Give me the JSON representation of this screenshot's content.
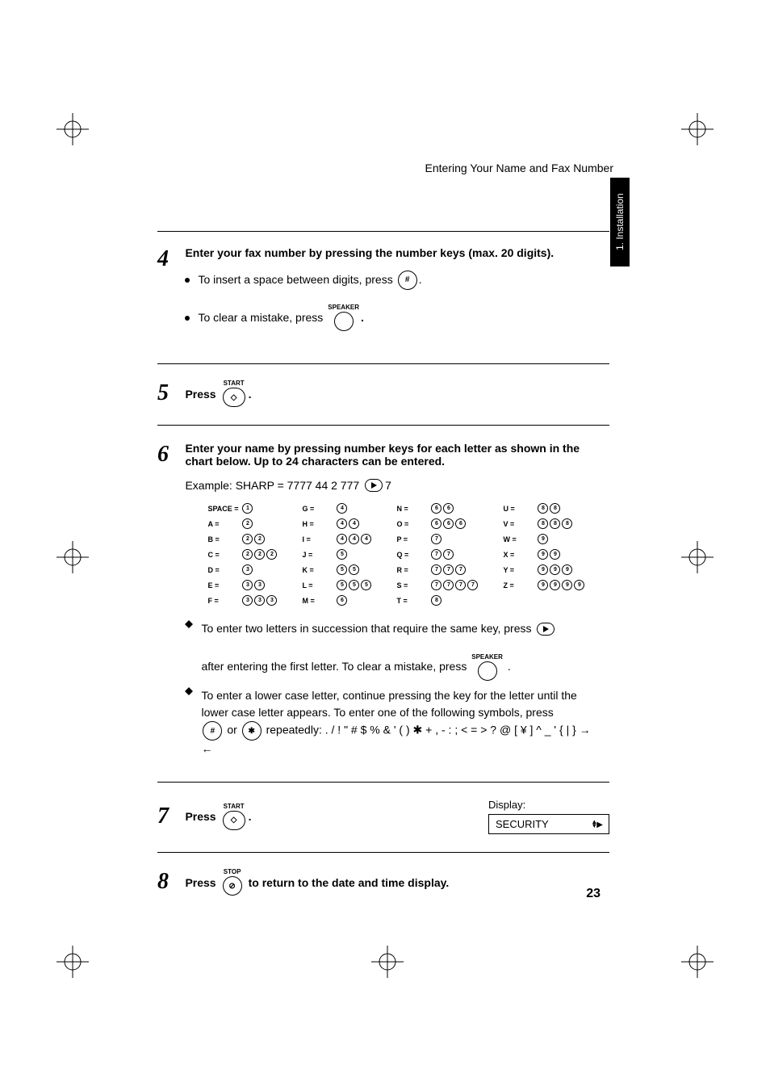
{
  "header": "Entering Your Name and Fax Number",
  "sidetab": "1. Installation",
  "page_number": "23",
  "step4": {
    "num": "4",
    "title": "Enter your fax number by pressing the number keys (max. 20 digits).",
    "bullet1_a": "To insert a space between digits, press",
    "bullet1_key": "#",
    "bullet1_b": ".",
    "bullet2_a": "To clear a mistake, press",
    "bullet2_key_label": "SPEAKER",
    "bullet2_b": "."
  },
  "step5": {
    "num": "5",
    "text_a": "Press",
    "key_label": "START",
    "text_b": "."
  },
  "step6": {
    "num": "6",
    "title": "Enter your name by pressing number keys for each letter as shown in the chart below. Up to 24 characters can be entered.",
    "example_a": "Example: SHARP = 7777  44  2  777",
    "example_b": "7",
    "chart": {
      "col1": [
        {
          "l": "SPACE =",
          "k": [
            "1"
          ]
        },
        {
          "l": "A =",
          "k": [
            "2"
          ]
        },
        {
          "l": "B =",
          "k": [
            "2",
            "2"
          ]
        },
        {
          "l": "C =",
          "k": [
            "2",
            "2",
            "2"
          ]
        },
        {
          "l": "D =",
          "k": [
            "3"
          ]
        },
        {
          "l": "E =",
          "k": [
            "3",
            "3"
          ]
        },
        {
          "l": "F =",
          "k": [
            "3",
            "3",
            "3"
          ]
        }
      ],
      "col2": [
        {
          "l": "G =",
          "k": [
            "4"
          ]
        },
        {
          "l": "H =",
          "k": [
            "4",
            "4"
          ]
        },
        {
          "l": "I =",
          "k": [
            "4",
            "4",
            "4"
          ]
        },
        {
          "l": "J =",
          "k": [
            "5"
          ]
        },
        {
          "l": "K =",
          "k": [
            "5",
            "5"
          ]
        },
        {
          "l": "L =",
          "k": [
            "5",
            "5",
            "5"
          ]
        },
        {
          "l": "M =",
          "k": [
            "6"
          ]
        }
      ],
      "col3": [
        {
          "l": "N =",
          "k": [
            "6",
            "6"
          ]
        },
        {
          "l": "O =",
          "k": [
            "6",
            "6",
            "6"
          ]
        },
        {
          "l": "P =",
          "k": [
            "7"
          ]
        },
        {
          "l": "Q =",
          "k": [
            "7",
            "7"
          ]
        },
        {
          "l": "R =",
          "k": [
            "7",
            "7",
            "7"
          ]
        },
        {
          "l": "S =",
          "k": [
            "7",
            "7",
            "7",
            "7"
          ]
        },
        {
          "l": "T =",
          "k": [
            "8"
          ]
        }
      ],
      "col4": [
        {
          "l": "U =",
          "k": [
            "8",
            "8"
          ]
        },
        {
          "l": "V =",
          "k": [
            "8",
            "8",
            "8"
          ]
        },
        {
          "l": "W =",
          "k": [
            "9"
          ]
        },
        {
          "l": "X =",
          "k": [
            "9",
            "9"
          ]
        },
        {
          "l": "Y =",
          "k": [
            "9",
            "9",
            "9"
          ]
        },
        {
          "l": "Z =",
          "k": [
            "9",
            "9",
            "9",
            "9"
          ]
        }
      ]
    },
    "d1_a": "To enter two letters in succession that require the same key, press",
    "d1_b": "after entering the first letter. To clear a mistake, press",
    "d1_key_label": "SPEAKER",
    "d1_c": ".",
    "d2_a": "To enter a lower case letter, continue pressing the key for the letter until the lower case letter appears. To enter one of the following symbols, press",
    "d2_key1": "#",
    "d2_or": "or",
    "d2_key2": "✱",
    "d2_b": "repeatedly: . / ! \" # $ % & ' ( ) ✱ + , - : ; < = > ? @ [ ¥ ] ^ _ ' { | } → ←"
  },
  "step7": {
    "num": "7",
    "text_a": "Press",
    "key_label": "START",
    "text_b": ".",
    "display_label": "Display:",
    "display_value": "SECURITY",
    "arrows_up": "▲",
    "arrows_down": "▼",
    "arrows_right": "▶"
  },
  "step8": {
    "num": "8",
    "text_a": "Press",
    "key_label": "STOP",
    "text_b": "to return to the date and time display."
  }
}
